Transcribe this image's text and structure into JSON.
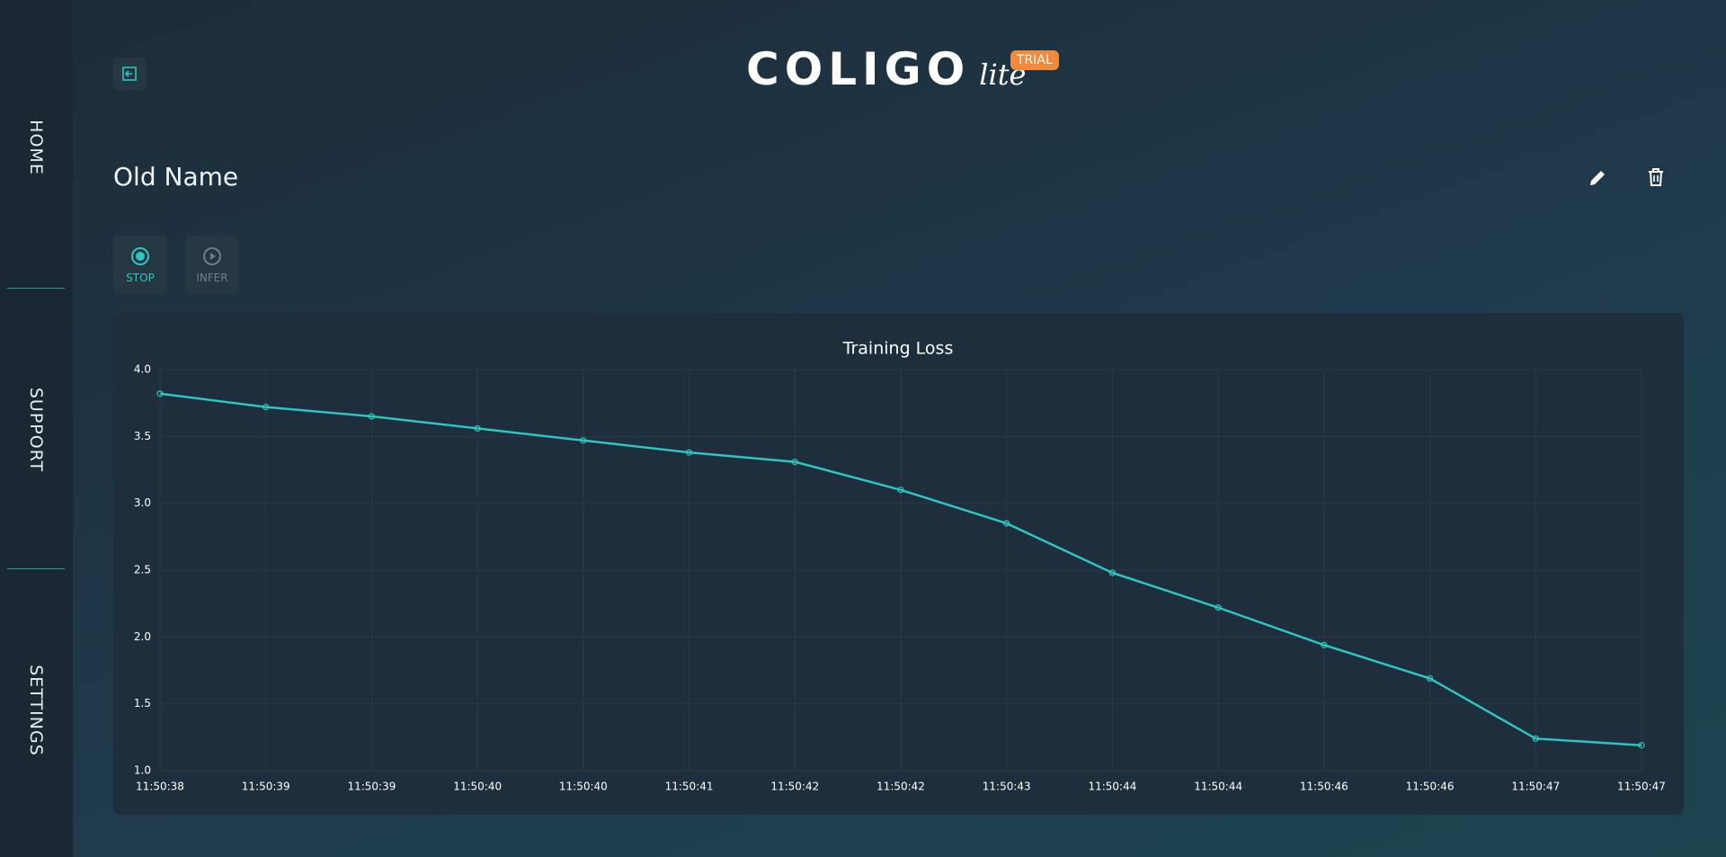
{
  "nav": {
    "items": [
      "HOME",
      "SUPPORT",
      "SETTINGS"
    ]
  },
  "brand": {
    "name": "COLIGO",
    "suffix": "lite",
    "badge": "TRIAL"
  },
  "page": {
    "title": "Old Name",
    "buttons": [
      "STOP",
      "INFER"
    ]
  },
  "chart_data": {
    "type": "line",
    "title": "Training Loss",
    "categories": [
      "11:50:38",
      "11:50:39",
      "11:50:39",
      "11:50:40",
      "11:50:40",
      "11:50:41",
      "11:50:42",
      "11:50:42",
      "11:50:43",
      "11:50:44",
      "11:50:44",
      "11:50:46",
      "11:50:46",
      "11:50:47",
      "11:50:47"
    ],
    "values": [
      3.82,
      3.72,
      3.65,
      3.56,
      3.47,
      3.38,
      3.31,
      3.1,
      2.85,
      2.48,
      2.22,
      1.94,
      1.69,
      1.24,
      1.19
    ],
    "color": "#2ec4c0",
    "ylim": [
      1.0,
      4.0
    ],
    "yticks": [
      {
        "value": 1.0,
        "label": "1.0"
      },
      1.5,
      {
        "value": 2.0,
        "label": "2.0"
      },
      2.5,
      {
        "value": 3.0,
        "label": "3.0"
      },
      3.5,
      {
        "value": 4.0,
        "label": "4.0"
      }
    ],
    "grid": true
  }
}
